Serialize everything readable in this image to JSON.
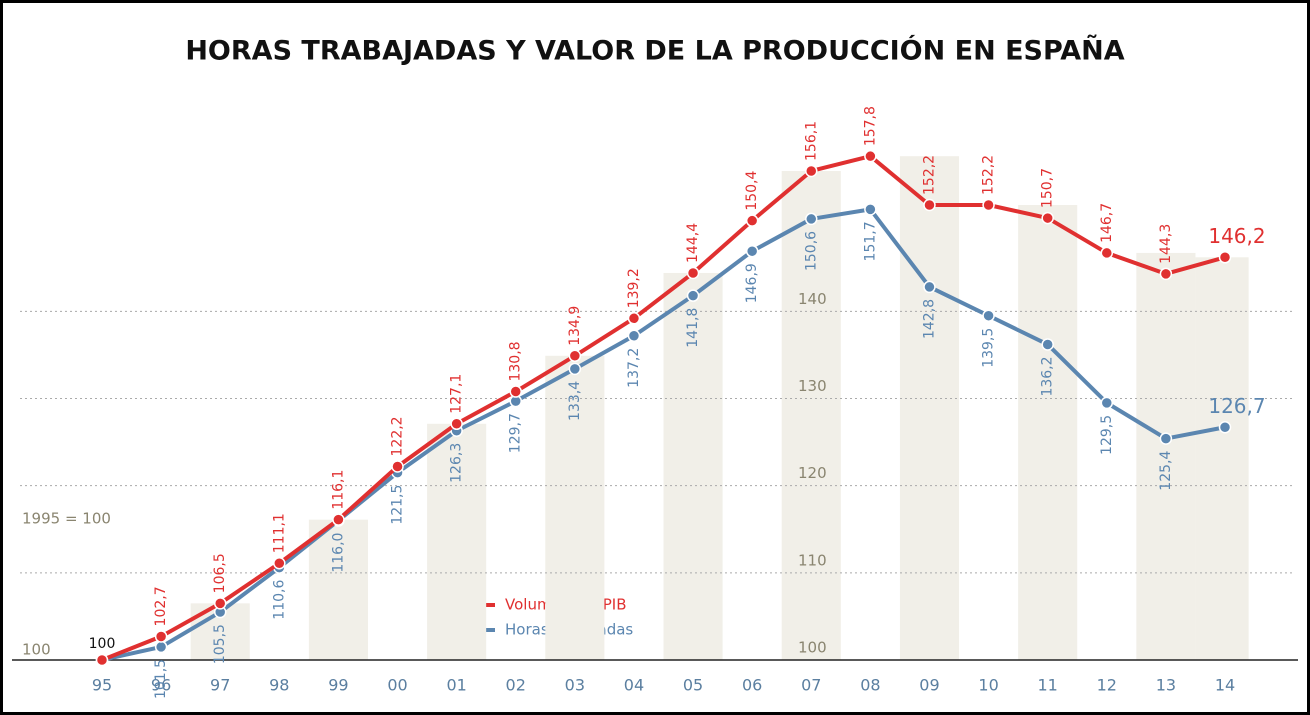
{
  "chart_data": {
    "type": "line",
    "title": "HORAS TRABAJADAS Y VALOR DE LA PRODUCCIÓN EN ESPAÑA",
    "annotation": "1995 = 100",
    "categories": [
      "95",
      "96",
      "97",
      "98",
      "99",
      "00",
      "01",
      "02",
      "03",
      "04",
      "05",
      "06",
      "07",
      "08",
      "09",
      "10",
      "11",
      "12",
      "13",
      "14"
    ],
    "series": [
      {
        "name": "Volumen del PIB",
        "color": "#e03030",
        "values": [
          100,
          102.7,
          106.5,
          111.1,
          116.1,
          122.2,
          127.1,
          130.8,
          134.9,
          139.2,
          144.4,
          150.4,
          156.1,
          157.8,
          152.2,
          152.2,
          150.7,
          146.7,
          144.3,
          146.2
        ],
        "value_labels": [
          "100",
          "102,7",
          "106,5",
          "111,1",
          "116,1",
          "122,2",
          "127,1",
          "130,8",
          "134,9",
          "139,2",
          "144,4",
          "150,4",
          "156,1",
          "157,8",
          "152,2",
          "152,2",
          "150,7",
          "146,7",
          "144,3",
          "146,2"
        ]
      },
      {
        "name": "Horas trabajadas",
        "color": "#5b86b0",
        "values": [
          100,
          101.5,
          105.5,
          110.6,
          116.0,
          121.5,
          126.3,
          129.7,
          133.4,
          137.2,
          141.8,
          146.9,
          150.6,
          151.7,
          142.8,
          139.5,
          136.2,
          129.5,
          125.4,
          126.7
        ],
        "value_labels": [
          null,
          "101,5",
          "105,5",
          "110,6",
          "116,0",
          "121,5",
          "126,3",
          "129,7",
          "133,4",
          "137,2",
          "141,8",
          "146,9",
          "150,6",
          "151,7",
          "142,8",
          "139,5",
          "136,2",
          "129,5",
          "125,4",
          "126,7"
        ]
      }
    ],
    "ylim": [
      100,
      160
    ],
    "yticks": [
      100,
      110,
      120,
      130,
      140
    ],
    "grid": true
  }
}
